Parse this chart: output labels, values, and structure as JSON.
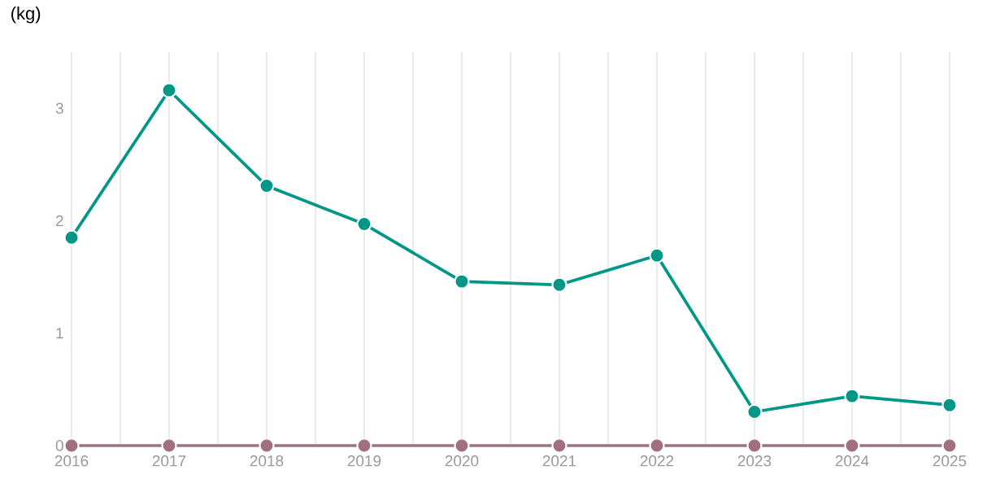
{
  "chart_data": {
    "type": "line",
    "ylabel": "(kg)",
    "x": [
      2016,
      2017,
      2018,
      2019,
      2020,
      2021,
      2022,
      2023,
      2024,
      2025
    ],
    "series": [
      {
        "color": "#009688",
        "values": [
          1.85,
          3.16,
          2.31,
          1.97,
          1.46,
          1.43,
          1.69,
          0.3,
          0.44,
          0.36
        ]
      },
      {
        "color": "#a0707e",
        "values": [
          0,
          0,
          0,
          0,
          0,
          0,
          0,
          0,
          0,
          0
        ]
      }
    ],
    "xlim": [
      2016,
      2025
    ],
    "ylim": [
      0,
      3.5
    ],
    "xticks": [
      2016,
      {
        "value": 2016.5,
        "label": null
      },
      2017,
      {
        "value": 2017.5,
        "label": null
      },
      2018,
      {
        "value": 2018.5,
        "label": null
      },
      2019,
      {
        "value": 2019.5,
        "label": null
      },
      2020,
      {
        "value": 2020.5,
        "label": null
      },
      2021,
      {
        "value": 2021.5,
        "label": null
      },
      2022,
      {
        "value": 2022.5,
        "label": null
      },
      2023,
      {
        "value": 2023.5,
        "label": null
      },
      2024,
      {
        "value": 2024.5,
        "label": null
      },
      2025
    ],
    "yticks": [
      0,
      1,
      2,
      3
    ],
    "grid": "x",
    "marker": "circle",
    "line_style": "solid"
  }
}
